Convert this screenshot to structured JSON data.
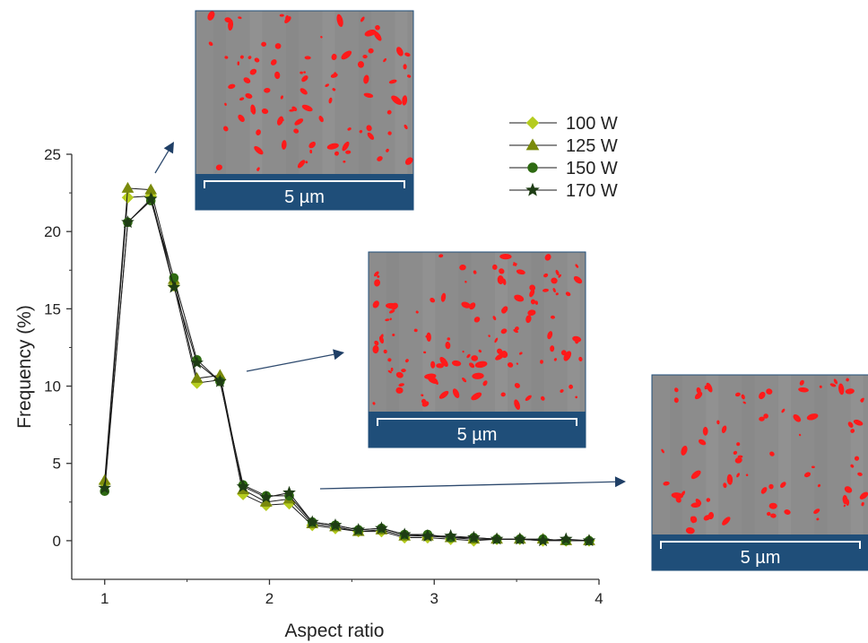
{
  "chart_data": {
    "type": "line",
    "xlabel": "Aspect ratio",
    "ylabel": "Frequency (%)",
    "xlim": [
      0.8,
      4
    ],
    "ylim": [
      -2.5,
      25
    ],
    "xticks": [
      1,
      2,
      3,
      4
    ],
    "yticks": [
      0,
      5,
      10,
      15,
      20,
      25
    ],
    "grid": false,
    "legend_position": "top-right",
    "x": [
      1.0,
      1.14,
      1.28,
      1.42,
      1.56,
      1.7,
      1.84,
      1.98,
      2.12,
      2.26,
      2.4,
      2.54,
      2.68,
      2.82,
      2.96,
      3.1,
      3.24,
      3.38,
      3.52,
      3.66,
      3.8,
      3.94
    ],
    "series": [
      {
        "name": "100 W",
        "marker": "diamond",
        "color": "#b5cc1f",
        "values": [
          3.7,
          22.2,
          22.3,
          16.5,
          10.2,
          10.4,
          3.0,
          2.3,
          2.4,
          1.0,
          0.8,
          0.6,
          0.6,
          0.2,
          0.2,
          0.1,
          0.0,
          0.1,
          0.1,
          0.0,
          0.0,
          0.0
        ]
      },
      {
        "name": "125 W",
        "marker": "triangle",
        "color": "#7a8a0c",
        "values": [
          3.9,
          22.8,
          22.7,
          16.9,
          10.5,
          10.7,
          3.3,
          2.5,
          2.7,
          1.1,
          0.9,
          0.6,
          0.7,
          0.3,
          0.3,
          0.2,
          0.1,
          0.1,
          0.1,
          0.1,
          0.0,
          0.0
        ]
      },
      {
        "name": "150 W",
        "marker": "circle",
        "color": "#2e6a12",
        "values": [
          3.2,
          20.6,
          22.0,
          17.0,
          11.7,
          10.3,
          3.6,
          2.9,
          2.9,
          1.2,
          1.0,
          0.7,
          0.8,
          0.4,
          0.4,
          0.2,
          0.2,
          0.1,
          0.1,
          0.1,
          0.0,
          0.0
        ]
      },
      {
        "name": "170 W",
        "marker": "star",
        "color": "#1e3d14",
        "values": [
          3.4,
          20.6,
          22.1,
          16.4,
          11.5,
          10.3,
          3.5,
          2.8,
          3.1,
          1.2,
          1.0,
          0.7,
          0.8,
          0.4,
          0.3,
          0.3,
          0.2,
          0.1,
          0.1,
          0.0,
          0.1,
          0.0
        ]
      }
    ],
    "insets": [
      {
        "scale_label": "5 µm",
        "seed": 11,
        "particles": 95
      },
      {
        "scale_label": "5 µm",
        "seed": 37,
        "particles": 120
      },
      {
        "scale_label": "5 µm",
        "seed": 73,
        "particles": 80
      }
    ]
  }
}
